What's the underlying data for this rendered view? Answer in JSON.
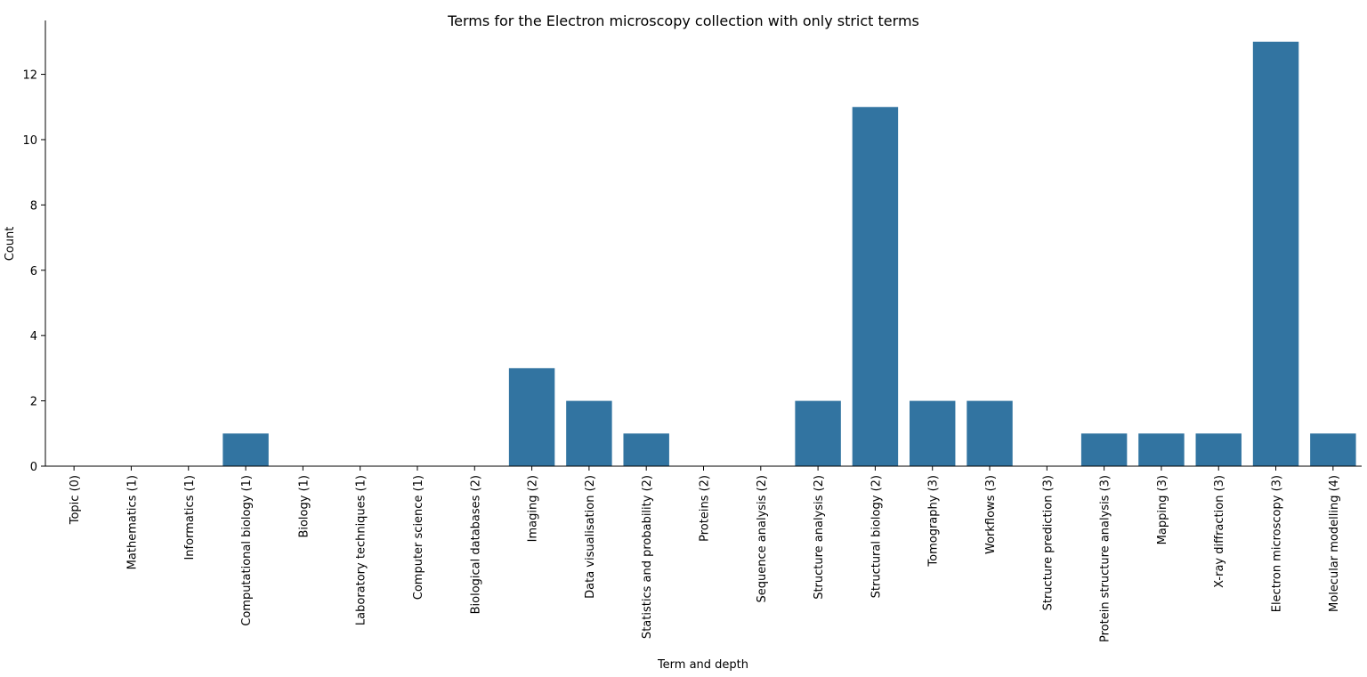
{
  "chart_data": {
    "type": "bar",
    "title": "Terms for the Electron microscopy collection with only strict terms",
    "xlabel": "Term and depth",
    "ylabel": "Count",
    "categories": [
      "Topic (0)",
      "Mathematics (1)",
      "Informatics (1)",
      "Computational biology (1)",
      "Biology (1)",
      "Laboratory techniques (1)",
      "Computer science (1)",
      "Biological databases (2)",
      "Imaging (2)",
      "Data visualisation (2)",
      "Statistics and probability (2)",
      "Proteins (2)",
      "Sequence analysis (2)",
      "Structure analysis (2)",
      "Structural biology (2)",
      "Tomography (3)",
      "Workflows (3)",
      "Structure prediction (3)",
      "Protein structure analysis (3)",
      "Mapping (3)",
      "X-ray diffraction (3)",
      "Electron microscopy (3)",
      "Molecular modelling (4)"
    ],
    "values": [
      0,
      0,
      0,
      1,
      0,
      0,
      0,
      0,
      3,
      2,
      1,
      0,
      0,
      2,
      11,
      2,
      2,
      0,
      1,
      1,
      1,
      13,
      1
    ],
    "ylim": [
      0,
      13.65
    ],
    "yticks": [
      0,
      2,
      4,
      6,
      8,
      10,
      12
    ],
    "bar_color": "#3274a1",
    "grid": false,
    "legend": "none"
  }
}
